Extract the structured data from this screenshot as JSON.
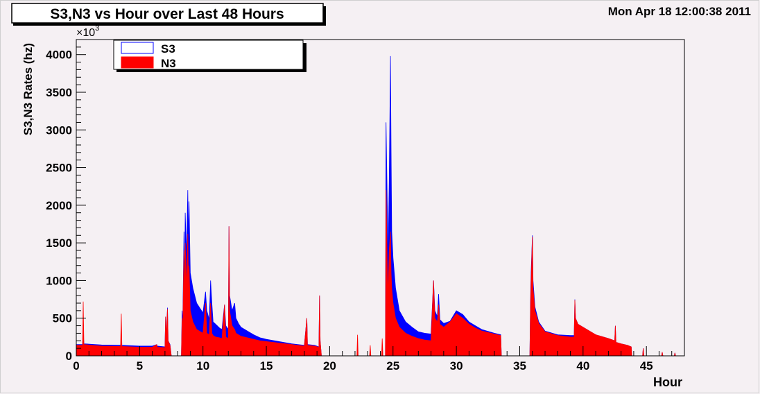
{
  "title": "S3,N3 vs Hour over Last 48 Hours",
  "timestamp": "Mon Apr 18 12:00:38 2011",
  "chart_data": {
    "type": "area",
    "title": "S3,N3 vs Hour over Last 48 Hours",
    "xlabel": "Hour",
    "ylabel": "S3,N3 Rates (hz)",
    "y_multiplier_label": "×10",
    "y_multiplier_exponent": "3",
    "xlim": [
      0,
      48
    ],
    "ylim": [
      0,
      4200
    ],
    "x_ticks": [
      0,
      5,
      10,
      15,
      20,
      25,
      30,
      35,
      40,
      45
    ],
    "y_ticks": [
      0,
      500,
      1000,
      1500,
      2000,
      2500,
      3000,
      3500,
      4000
    ],
    "grid": false,
    "legend_position": "top-left",
    "series": [
      {
        "name": "S3",
        "color": "#0000ff",
        "points": [
          [
            0,
            0
          ],
          [
            0.05,
            150
          ],
          [
            0.5,
            150
          ],
          [
            0.55,
            300
          ],
          [
            0.6,
            160
          ],
          [
            2,
            145
          ],
          [
            3.5,
            140
          ],
          [
            3.55,
            165
          ],
          [
            3.6,
            140
          ],
          [
            5,
            130
          ],
          [
            6,
            130
          ],
          [
            6.35,
            150
          ],
          [
            6.4,
            130
          ],
          [
            7,
            120
          ],
          [
            7.05,
            520
          ],
          [
            7.1,
            230
          ],
          [
            7.2,
            640
          ],
          [
            7.25,
            200
          ],
          [
            7.4,
            150
          ],
          [
            7.5,
            0
          ],
          [
            8.3,
            0
          ],
          [
            8.35,
            600
          ],
          [
            8.4,
            400
          ],
          [
            8.5,
            1650
          ],
          [
            8.55,
            800
          ],
          [
            8.6,
            1900
          ],
          [
            8.7,
            1300
          ],
          [
            8.8,
            2200
          ],
          [
            8.85,
            1500
          ],
          [
            8.9,
            2050
          ],
          [
            9,
            1100
          ],
          [
            9.2,
            900
          ],
          [
            9.5,
            700
          ],
          [
            10,
            570
          ],
          [
            10.2,
            850
          ],
          [
            10.3,
            600
          ],
          [
            10.5,
            480
          ],
          [
            10.6,
            1000
          ],
          [
            10.7,
            700
          ],
          [
            10.8,
            450
          ],
          [
            11,
            420
          ],
          [
            11.3,
            370
          ],
          [
            11.5,
            350
          ],
          [
            11.7,
            680
          ],
          [
            11.8,
            400
          ],
          [
            12,
            350
          ],
          [
            12.05,
            1720
          ],
          [
            12.1,
            800
          ],
          [
            12.3,
            600
          ],
          [
            12.5,
            700
          ],
          [
            12.6,
            500
          ],
          [
            12.8,
            430
          ],
          [
            13,
            380
          ],
          [
            13.5,
            330
          ],
          [
            14,
            280
          ],
          [
            14.5,
            240
          ],
          [
            15,
            220
          ],
          [
            16,
            190
          ],
          [
            17,
            160
          ],
          [
            18,
            140
          ],
          [
            18.2,
            500
          ],
          [
            18.25,
            150
          ],
          [
            18.8,
            140
          ],
          [
            19.15,
            120
          ],
          [
            19.2,
            800
          ],
          [
            19.25,
            200
          ],
          [
            19.35,
            0
          ],
          [
            24.4,
            0
          ],
          [
            24.45,
            3100
          ],
          [
            24.55,
            2000
          ],
          [
            24.6,
            1200
          ],
          [
            24.7,
            2300
          ],
          [
            24.8,
            3980
          ],
          [
            24.85,
            2700
          ],
          [
            24.9,
            1650
          ],
          [
            25,
            1300
          ],
          [
            25.2,
            900
          ],
          [
            25.5,
            600
          ],
          [
            26,
            450
          ],
          [
            26.5,
            380
          ],
          [
            27,
            320
          ],
          [
            27.5,
            300
          ],
          [
            28,
            290
          ],
          [
            28.2,
            1000
          ],
          [
            28.3,
            600
          ],
          [
            28.5,
            520
          ],
          [
            28.6,
            820
          ],
          [
            28.7,
            480
          ],
          [
            29,
            430
          ],
          [
            29.5,
            460
          ],
          [
            30,
            600
          ],
          [
            30.5,
            550
          ],
          [
            31,
            450
          ],
          [
            31.5,
            400
          ],
          [
            32,
            350
          ],
          [
            33,
            300
          ],
          [
            33.5,
            280
          ],
          [
            33.55,
            0
          ],
          [
            35.8,
            0
          ],
          [
            35.85,
            700
          ],
          [
            35.9,
            1100
          ],
          [
            36,
            1600
          ],
          [
            36.05,
            1000
          ],
          [
            36.2,
            650
          ],
          [
            36.5,
            450
          ],
          [
            37,
            330
          ],
          [
            38,
            280
          ],
          [
            39,
            270
          ],
          [
            39.3,
            270
          ],
          [
            39.35,
            750
          ],
          [
            39.4,
            500
          ],
          [
            39.6,
            420
          ],
          [
            40,
            380
          ],
          [
            40.5,
            330
          ],
          [
            41,
            280
          ],
          [
            42,
            230
          ],
          [
            42.5,
            200
          ],
          [
            42.55,
            400
          ],
          [
            42.6,
            180
          ],
          [
            43,
            160
          ],
          [
            43.5,
            140
          ],
          [
            43.8,
            120
          ],
          [
            43.85,
            0
          ],
          [
            44.7,
            0
          ],
          [
            44.75,
            100
          ],
          [
            44.8,
            0
          ],
          [
            46.2,
            0
          ],
          [
            46.25,
            50
          ],
          [
            46.3,
            0
          ],
          [
            47.2,
            0
          ],
          [
            47.25,
            40
          ],
          [
            47.3,
            0
          ],
          [
            48,
            0
          ]
        ]
      },
      {
        "name": "N3",
        "color": "#ff0000",
        "points": [
          [
            0,
            0
          ],
          [
            0.05,
            140
          ],
          [
            0.5,
            140
          ],
          [
            0.55,
            720
          ],
          [
            0.6,
            150
          ],
          [
            2,
            130
          ],
          [
            3.5,
            125
          ],
          [
            3.55,
            560
          ],
          [
            3.6,
            125
          ],
          [
            5,
            115
          ],
          [
            6,
            115
          ],
          [
            6.35,
            150
          ],
          [
            6.4,
            115
          ],
          [
            7,
            110
          ],
          [
            7.05,
            520
          ],
          [
            7.1,
            230
          ],
          [
            7.2,
            620
          ],
          [
            7.25,
            200
          ],
          [
            7.4,
            140
          ],
          [
            7.5,
            0
          ],
          [
            8.3,
            0
          ],
          [
            8.35,
            500
          ],
          [
            8.4,
            350
          ],
          [
            8.5,
            1400
          ],
          [
            8.55,
            700
          ],
          [
            8.6,
            1500
          ],
          [
            8.7,
            900
          ],
          [
            8.8,
            1620
          ],
          [
            8.85,
            1000
          ],
          [
            8.9,
            1200
          ],
          [
            9,
            600
          ],
          [
            9.2,
            450
          ],
          [
            9.5,
            350
          ],
          [
            10,
            300
          ],
          [
            10.2,
            700
          ],
          [
            10.3,
            300
          ],
          [
            10.5,
            280
          ],
          [
            10.6,
            700
          ],
          [
            10.7,
            300
          ],
          [
            10.8,
            270
          ],
          [
            11,
            250
          ],
          [
            11.3,
            240
          ],
          [
            11.5,
            230
          ],
          [
            11.7,
            680
          ],
          [
            11.8,
            250
          ],
          [
            12,
            230
          ],
          [
            12.05,
            1720
          ],
          [
            12.1,
            600
          ],
          [
            12.3,
            400
          ],
          [
            12.5,
            350
          ],
          [
            12.6,
            300
          ],
          [
            12.8,
            280
          ],
          [
            13,
            260
          ],
          [
            13.5,
            240
          ],
          [
            14,
            220
          ],
          [
            14.5,
            200
          ],
          [
            15,
            190
          ],
          [
            16,
            170
          ],
          [
            17,
            150
          ],
          [
            18,
            130
          ],
          [
            18.2,
            500
          ],
          [
            18.25,
            140
          ],
          [
            18.8,
            130
          ],
          [
            19.15,
            115
          ],
          [
            19.2,
            800
          ],
          [
            19.25,
            200
          ],
          [
            19.35,
            0
          ],
          [
            22.15,
            0
          ],
          [
            22.2,
            280
          ],
          [
            22.25,
            0
          ],
          [
            23.15,
            0
          ],
          [
            23.2,
            140
          ],
          [
            23.25,
            0
          ],
          [
            24.1,
            0
          ],
          [
            24.15,
            230
          ],
          [
            24.2,
            0
          ],
          [
            24.4,
            0
          ],
          [
            24.45,
            2200
          ],
          [
            24.55,
            1200
          ],
          [
            24.6,
            800
          ],
          [
            24.7,
            1400
          ],
          [
            24.8,
            1650
          ],
          [
            24.85,
            1100
          ],
          [
            24.9,
            900
          ],
          [
            25,
            700
          ],
          [
            25.2,
            500
          ],
          [
            25.5,
            380
          ],
          [
            26,
            300
          ],
          [
            26.5,
            260
          ],
          [
            27,
            230
          ],
          [
            27.5,
            210
          ],
          [
            28,
            200
          ],
          [
            28.2,
            1000
          ],
          [
            28.3,
            500
          ],
          [
            28.5,
            450
          ],
          [
            28.6,
            680
          ],
          [
            28.7,
            420
          ],
          [
            29,
            380
          ],
          [
            29.5,
            450
          ],
          [
            30,
            560
          ],
          [
            30.5,
            500
          ],
          [
            31,
            420
          ],
          [
            31.5,
            370
          ],
          [
            32,
            330
          ],
          [
            33,
            290
          ],
          [
            33.5,
            270
          ],
          [
            33.55,
            0
          ],
          [
            35.8,
            0
          ],
          [
            35.85,
            600
          ],
          [
            35.9,
            1000
          ],
          [
            36,
            1580
          ],
          [
            36.05,
            900
          ],
          [
            36.2,
            600
          ],
          [
            36.5,
            430
          ],
          [
            37,
            320
          ],
          [
            38,
            270
          ],
          [
            39,
            250
          ],
          [
            39.3,
            250
          ],
          [
            39.35,
            740
          ],
          [
            39.4,
            500
          ],
          [
            39.6,
            420
          ],
          [
            40,
            380
          ],
          [
            40.5,
            330
          ],
          [
            41,
            280
          ],
          [
            42,
            230
          ],
          [
            42.5,
            200
          ],
          [
            42.55,
            400
          ],
          [
            42.6,
            180
          ],
          [
            43,
            160
          ],
          [
            43.5,
            140
          ],
          [
            43.8,
            120
          ],
          [
            43.85,
            0
          ],
          [
            44.7,
            0
          ],
          [
            44.75,
            100
          ],
          [
            44.8,
            0
          ],
          [
            46.2,
            0
          ],
          [
            46.25,
            50
          ],
          [
            46.3,
            0
          ],
          [
            47.2,
            0
          ],
          [
            47.25,
            40
          ],
          [
            47.3,
            0
          ],
          [
            48,
            0
          ]
        ]
      }
    ]
  }
}
